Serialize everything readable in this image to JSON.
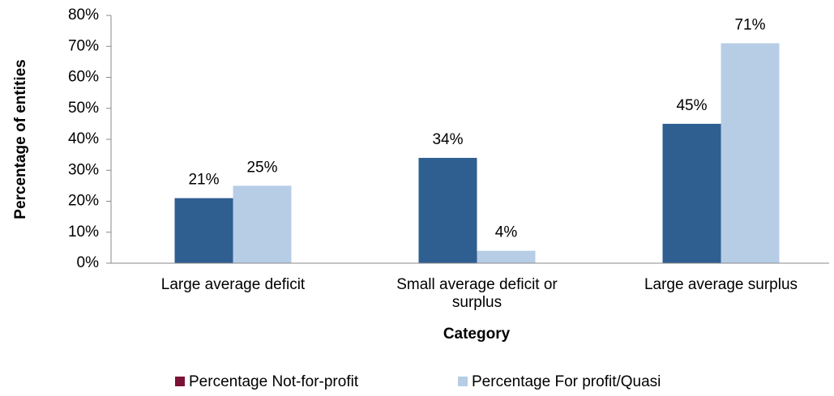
{
  "chart_data": {
    "type": "bar",
    "x_label": "Category",
    "y_label": "Percentage of entities",
    "categories": [
      "Large average deficit",
      "Small average deficit or surplus",
      "Large average surplus"
    ],
    "series": [
      {
        "name": "Percentage Not-for-profit",
        "color": "#2f5f91",
        "legend_color": "#7b1236",
        "values": [
          21,
          34,
          45
        ],
        "value_labels": [
          "21%",
          "34%",
          "45%"
        ]
      },
      {
        "name": "Percentage For profit/Quasi",
        "color": "#b7cde6",
        "legend_color": "#b7cde6",
        "values": [
          25,
          4,
          71
        ],
        "value_labels": [
          "25%",
          "4%",
          "71%"
        ]
      }
    ],
    "ylim": [
      0,
      80
    ],
    "yticks": [
      {
        "value": 0,
        "label": "0%"
      },
      {
        "value": 10,
        "label": "10%"
      },
      {
        "value": 20,
        "label": "20%"
      },
      {
        "value": 30,
        "label": "30%"
      },
      {
        "value": 40,
        "label": "40%"
      },
      {
        "value": 50,
        "label": "50%"
      },
      {
        "value": 60,
        "label": "60%"
      },
      {
        "value": 70,
        "label": "70%"
      },
      {
        "value": 80,
        "label": "80%"
      }
    ],
    "grid": false,
    "legend": "bottom"
  }
}
